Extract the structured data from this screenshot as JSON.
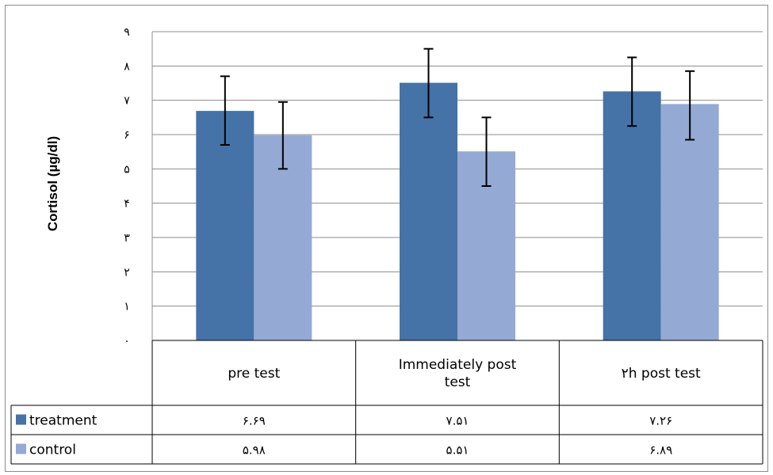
{
  "chart_data": {
    "type": "bar",
    "ylabel": "Cortisol (µg/dl)",
    "ylim": [
      0,
      9
    ],
    "y_ticks": [
      "۰",
      "۱",
      "۲",
      "۳",
      "۴",
      "۵",
      "۶",
      "۷",
      "۸",
      "۹"
    ],
    "categories": [
      "pre test",
      "Immediately post test",
      "۲h post test"
    ],
    "series": [
      {
        "name": "treatment",
        "color": "#4572a7",
        "values": [
          6.69,
          7.51,
          7.26
        ],
        "value_labels": [
          "۶.۶۹",
          "۷.۵۱",
          "۷.۲۶"
        ],
        "error_low": [
          5.7,
          6.5,
          6.25
        ],
        "error_high": [
          7.7,
          8.5,
          8.25
        ]
      },
      {
        "name": "control",
        "color": "#94a9d4",
        "values": [
          5.98,
          5.51,
          6.89
        ],
        "value_labels": [
          "۵.۹۸",
          "۵.۵۱",
          "۶.۸۹"
        ],
        "error_low": [
          5.0,
          4.5,
          5.85
        ],
        "error_high": [
          6.95,
          6.5,
          7.85
        ]
      }
    ],
    "grid": true,
    "legend": "data-table"
  }
}
